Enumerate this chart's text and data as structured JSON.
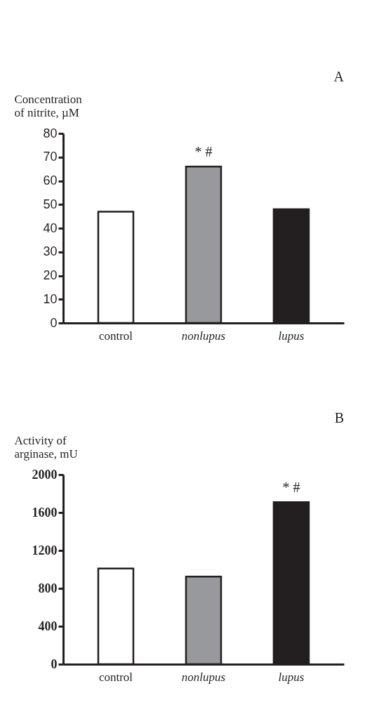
{
  "chart_data": [
    {
      "type": "bar",
      "ylabel": "Concentration\nof nitrite, µM",
      "categories": [
        "control",
        "nonlupus",
        "lupus"
      ],
      "values": [
        47,
        66,
        48
      ],
      "colors": [
        "#ffffff",
        "#98999d",
        "#231f20"
      ],
      "ylim": [
        0,
        80
      ],
      "yticks": [
        0,
        10,
        20,
        30,
        40,
        50,
        60,
        70,
        80
      ],
      "grid": false,
      "annotations": [
        "A",
        {
          "text": "* #",
          "x": "nonlupus",
          "y": 66
        }
      ]
    },
    {
      "type": "bar",
      "ylabel": "Activity of\narginase, mU",
      "categories": [
        "control",
        "nonlupus",
        "lupus"
      ],
      "values": [
        1010,
        925,
        1710
      ],
      "colors": [
        "#ffffff",
        "#98999d",
        "#231f20"
      ],
      "ylim": [
        0,
        2000
      ],
      "yticks": [
        0,
        400,
        800,
        1200,
        1600,
        2000
      ],
      "grid": false,
      "annotations": [
        "B",
        {
          "text": "* #",
          "x": "lupus",
          "y": 1710
        }
      ]
    }
  ]
}
